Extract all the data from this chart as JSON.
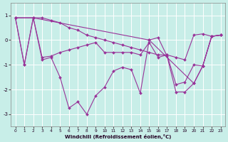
{
  "bg_color": "#c8eee8",
  "line_color": "#993399",
  "grid_color": "#ffffff",
  "xlabel": "Windchill (Refroidissement éolien,°C)",
  "lines": [
    {
      "x": [
        0,
        1,
        2,
        3,
        4,
        5,
        6,
        7,
        8,
        9,
        10,
        11,
        12,
        13,
        14,
        15,
        16,
        17,
        18,
        19,
        20,
        21,
        22,
        23
      ],
      "y": [
        0.9,
        -1.0,
        0.9,
        0.9,
        0.8,
        0.7,
        0.5,
        0.4,
        0.2,
        0.1,
        0.0,
        -0.1,
        -0.2,
        -0.3,
        -0.4,
        -0.5,
        -0.6,
        -0.6,
        -0.7,
        -0.8,
        0.2,
        0.25,
        0.15,
        0.2
      ]
    },
    {
      "x": [
        0,
        1,
        2,
        3,
        4,
        5,
        6,
        7,
        8,
        9,
        10,
        11,
        12,
        13,
        14,
        15,
        16,
        17,
        18,
        19,
        20,
        21,
        22,
        23
      ],
      "y": [
        0.9,
        -1.0,
        0.9,
        -0.8,
        -0.7,
        -1.5,
        -2.75,
        -2.5,
        -3.0,
        -2.25,
        -1.9,
        -1.25,
        -1.1,
        -1.2,
        -2.15,
        0.0,
        0.1,
        -0.65,
        -2.1,
        -2.1,
        -1.75,
        -1.05,
        0.15,
        0.2
      ]
    },
    {
      "x": [
        0,
        2,
        3,
        4,
        5,
        6,
        7,
        8,
        9,
        10,
        11,
        12,
        13,
        14,
        15,
        16,
        17,
        18,
        19,
        20,
        21,
        22,
        23
      ],
      "y": [
        0.9,
        0.9,
        -0.7,
        -0.65,
        -0.5,
        -0.4,
        -0.3,
        -0.2,
        -0.1,
        -0.5,
        -0.5,
        -0.5,
        -0.5,
        -0.6,
        -0.1,
        -0.7,
        -0.6,
        -1.8,
        -1.7,
        -1.0,
        -1.05,
        0.15,
        0.2
      ]
    },
    {
      "x": [
        0,
        2,
        15,
        20,
        21,
        22,
        23
      ],
      "y": [
        0.9,
        0.9,
        0.0,
        -1.75,
        -1.05,
        0.15,
        0.2
      ]
    }
  ],
  "xlim": [
    -0.5,
    23.5
  ],
  "ylim": [
    -3.5,
    1.5
  ],
  "yticks": [
    -3,
    -2,
    -1,
    0,
    1
  ],
  "xticks": [
    0,
    1,
    2,
    3,
    4,
    5,
    6,
    7,
    8,
    9,
    10,
    11,
    12,
    13,
    14,
    15,
    16,
    17,
    18,
    19,
    20,
    21,
    22,
    23
  ],
  "figsize": [
    3.2,
    2.0
  ],
  "dpi": 100
}
